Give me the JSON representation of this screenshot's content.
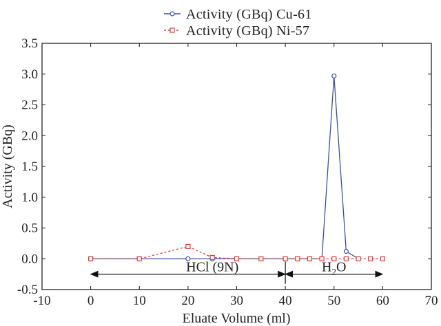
{
  "chart_data": {
    "type": "line",
    "xlabel": "Eluate Volume (ml)",
    "ylabel": "Activity (GBq)",
    "xlim": [
      -10,
      70
    ],
    "ylim": [
      -0.5,
      3.5
    ],
    "x_ticks": [
      -10,
      0,
      10,
      20,
      30,
      40,
      50,
      60,
      70
    ],
    "y_ticks": [
      -0.5,
      0.0,
      0.5,
      1.0,
      1.5,
      2.0,
      2.5,
      3.0,
      3.5
    ],
    "x_tick_labels": [
      "-10",
      "0",
      "10",
      "20",
      "30",
      "40",
      "50",
      "60",
      "70"
    ],
    "y_tick_labels": [
      "-0.5",
      "0.0",
      "0.5",
      "1.0",
      "1.5",
      "2.0",
      "2.5",
      "3.0",
      "3.5"
    ],
    "legend_position": "top-center",
    "grid": false,
    "series": [
      {
        "name": "Activity (GBq) Cu-61",
        "color": "#3a4fa8",
        "line_style": "solid",
        "marker": "circle",
        "x": [
          0,
          10,
          20,
          25,
          47.5,
          50,
          52.5,
          55
        ],
        "y": [
          0.0,
          0.0,
          0.0,
          0.0,
          0.0,
          2.97,
          0.12,
          0.0
        ]
      },
      {
        "name": "Activity (GBq) Ni-57",
        "color": "#e03a2e",
        "line_style": "dashed",
        "marker": "square",
        "x": [
          0,
          10,
          20,
          25,
          30,
          35,
          40,
          42.5,
          45,
          47.5,
          50,
          52.5,
          55,
          57.5,
          60
        ],
        "y": [
          0.0,
          0.0,
          0.2,
          0.02,
          0.0,
          0.0,
          0.0,
          0.0,
          0.0,
          0.0,
          0.0,
          0.0,
          0.0,
          0.0,
          0.0
        ]
      }
    ],
    "annotations": [
      {
        "label": "HCl (9N)",
        "x_from": 0,
        "x_to": 40
      },
      {
        "label_main": "H",
        "label_sub": "2",
        "label_end": "O",
        "x_from": 40,
        "x_to": 60
      }
    ],
    "divider_x": 40
  }
}
